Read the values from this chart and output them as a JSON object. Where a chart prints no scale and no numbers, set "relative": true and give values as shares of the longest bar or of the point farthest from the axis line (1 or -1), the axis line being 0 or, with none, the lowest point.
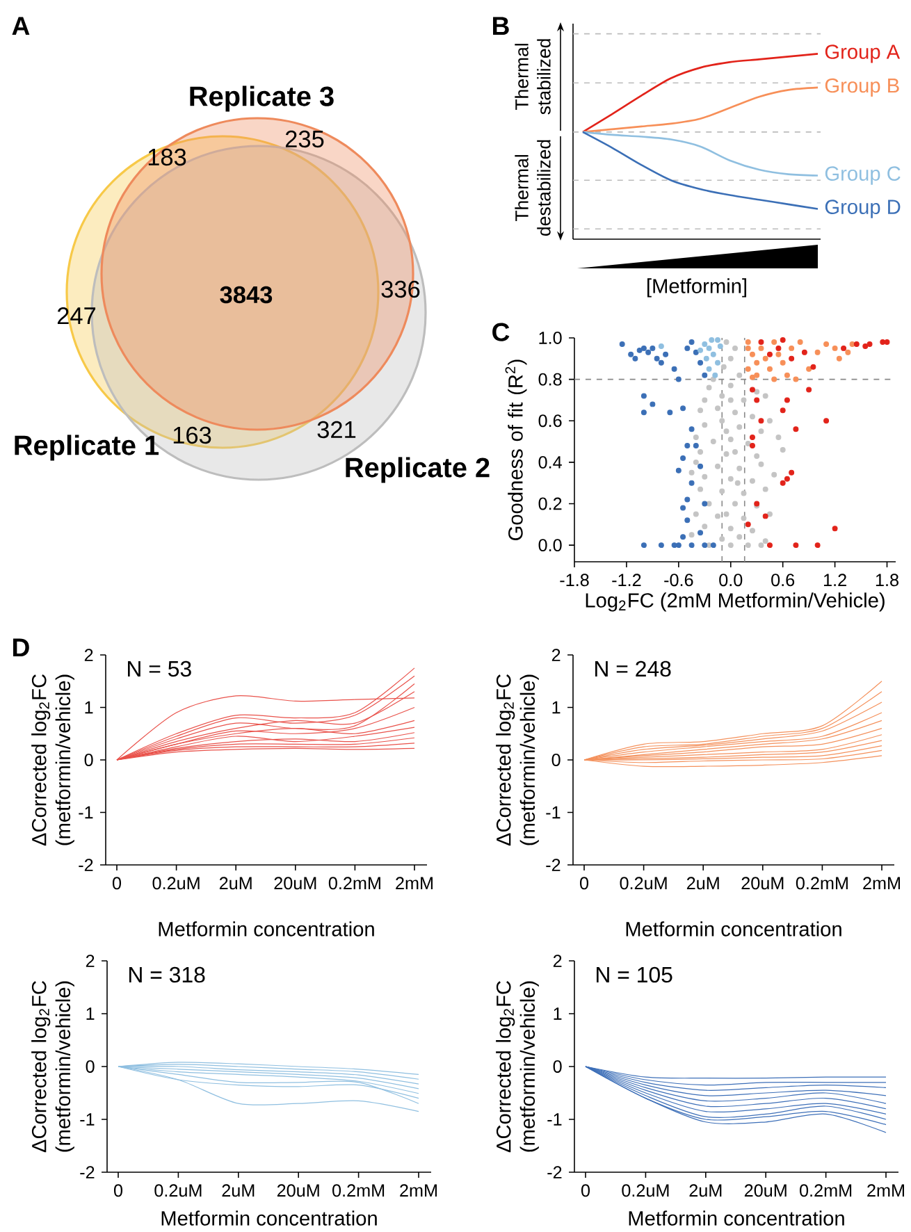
{
  "chart_data": [
    {
      "type": "other",
      "title": "A",
      "annotations": [
        "Replicate 1",
        "Replicate 2",
        "Replicate 3",
        "247",
        "321",
        "235",
        "163",
        "183",
        "336",
        "**3843**"
      ]
    },
    {
      "type": "line",
      "title": "B",
      "relative": true,
      "xlabel": "[Metformin]",
      "annotations": [
        "Thermal stabilized",
        "Thermal destabilized"
      ],
      "categories": [
        null,
        null,
        null,
        null,
        null,
        null,
        null,
        null,
        null
      ],
      "series": [
        {
          "name": "Group A",
          "color": "#e2231a",
          "values": [
            0.578,
            0.675,
            0.775,
            0.868,
            0.925,
            0.955,
            0.97,
            0.985,
            1.0
          ]
        },
        {
          "name": "Group B",
          "color": "#f78f58",
          "values": [
            0.578,
            0.593,
            0.608,
            0.623,
            0.65,
            0.708,
            0.768,
            0.805,
            0.818
          ]
        },
        {
          "name": "Group C",
          "color": "#8fbfe0",
          "values": [
            0.578,
            0.563,
            0.553,
            0.538,
            0.5,
            0.425,
            0.375,
            0.35,
            0.343
          ]
        },
        {
          "name": "Group D",
          "color": "#3b6fb6",
          "values": [
            0.578,
            0.493,
            0.4,
            0.318,
            0.27,
            0.238,
            0.213,
            0.188,
            0.163
          ]
        }
      ],
      "ref_lines": [
        {
          "axis": "y",
          "value": 1.108,
          "color": "#bbbbbb",
          "line_style": "dashed"
        },
        {
          "axis": "y",
          "value": 0.843,
          "color": "#bbbbbb",
          "line_style": "dashed"
        },
        {
          "axis": "y",
          "value": 0.578,
          "color": "#bbbbbb",
          "line_style": "dashed"
        },
        {
          "axis": "y",
          "value": 0.318,
          "color": "#bbbbbb",
          "line_style": "dashed"
        },
        {
          "axis": "y",
          "value": 0.055,
          "color": "#bbbbbb",
          "line_style": "dashed"
        }
      ]
    },
    {
      "type": "scatter",
      "title": "C",
      "xlabel": "Log$_{2}$FC (2mM Metformin/Vehicle)",
      "ylabel": "Goodness of fit (R$^{2}$)",
      "marker": "circle",
      "xlim": [
        -1.8,
        1.9
      ],
      "ylim": [
        -0.08,
        1.0
      ],
      "xticks": [
        -1.8,
        -1.2,
        -0.6,
        {
          "value": 0,
          "label": "0.0"
        },
        0.6,
        1.2,
        1.8
      ],
      "yticks": [
        {
          "value": 0,
          "label": "0.0"
        },
        0.2,
        0.4,
        0.6,
        0.8,
        {
          "value": 1,
          "label": "1.0"
        }
      ],
      "ref_lines": [
        {
          "axis": "y",
          "value": 0.8,
          "color": "#888888",
          "line_style": "dashed"
        },
        {
          "axis": "x",
          "value": -0.1,
          "color": "#888888",
          "line_style": "dashed"
        },
        {
          "axis": "x",
          "value": 0.16,
          "color": "#888888",
          "line_style": "dashed"
        }
      ],
      "series": [
        {
          "color": "#c4c4c4",
          "x": [
            -0.05,
            0.05,
            0.0,
            -0.08,
            0.1,
            -0.25,
            0.0,
            0.3,
            -0.3,
            -0.1,
            0.15,
            0.4,
            -0.35,
            -0.15,
            0.05,
            0.25,
            0.45,
            -0.3,
            0.1,
            0.35,
            -0.4,
            -0.2,
            0.0,
            0.2,
            0.55,
            -0.35,
            -0.05,
            0.3,
            0.6,
            -0.4,
            -0.15,
            0.1,
            0.35,
            -0.3,
            0.0,
            0.25,
            0.5,
            -0.45,
            -0.35,
            -0.1,
            0.15,
            0.4,
            -0.25,
            0.05,
            0.3,
            -0.4,
            -0.15,
            0.15,
            0.45,
            -0.3,
            0.0,
            0.25,
            -0.45,
            -0.1,
            0.1,
            0.4,
            -0.25,
            0.0,
            0.2,
            0.35,
            -0.1,
            0.05,
            -0.2,
            0.0,
            -0.05,
            0.08,
            -0.05
          ],
          "values": [
            0.98,
            0.95,
            0.9,
            0.86,
            0.82,
            0.76,
            0.77,
            0.74,
            0.7,
            0.72,
            0.7,
            0.72,
            0.65,
            0.66,
            0.64,
            0.62,
            0.6,
            0.58,
            0.57,
            0.55,
            0.52,
            0.5,
            0.51,
            0.49,
            0.52,
            0.45,
            0.44,
            0.43,
            0.46,
            0.4,
            0.38,
            0.37,
            0.39,
            0.33,
            0.32,
            0.31,
            0.34,
            0.35,
            0.27,
            0.26,
            0.25,
            0.27,
            0.2,
            0.2,
            0.19,
            0.15,
            0.14,
            0.13,
            0.15,
            0.09,
            0.08,
            0.07,
            0.05,
            0.03,
            0.04,
            0.02,
            0.0,
            0.0,
            0.0,
            0.0,
            0.6,
            0.45,
            0.8,
            0.7,
            0.55,
            0.3,
            0.15
          ]
        },
        {
          "color": "#3b6fb6",
          "x": [
            -1.25,
            -1.15,
            -1.1,
            -1.05,
            -1.0,
            -0.95,
            -0.9,
            -0.85,
            -0.8,
            -0.75,
            -0.65,
            -0.6,
            -0.5,
            -0.45,
            -0.4,
            -0.35,
            -0.3,
            -1.0,
            -0.9,
            -1.0,
            -0.7,
            -0.55,
            -0.45,
            -0.5,
            -0.4,
            -0.55,
            -0.6,
            -0.45,
            -0.5,
            -0.55,
            -0.5,
            -0.35,
            -0.55,
            -1.0,
            -0.8,
            -0.6,
            -0.45,
            -0.3,
            -0.2,
            -0.3,
            -0.35,
            -0.65
          ],
          "values": [
            0.97,
            0.92,
            0.9,
            0.94,
            0.95,
            0.93,
            0.95,
            0.9,
            0.88,
            0.92,
            0.85,
            0.8,
            0.95,
            0.98,
            0.93,
            0.88,
            0.82,
            0.72,
            0.68,
            0.64,
            0.64,
            0.66,
            0.56,
            0.48,
            0.48,
            0.42,
            0.36,
            0.3,
            0.22,
            0.18,
            0.12,
            0.06,
            0.04,
            0.0,
            0.0,
            0.0,
            0.0,
            0.0,
            0.0,
            0.2,
            0.38,
            0.0
          ]
        },
        {
          "color": "#8fbfe0",
          "x": [
            -0.3,
            -0.25,
            -0.2,
            -0.15,
            -0.25,
            -0.18,
            -0.28,
            -0.12,
            -0.22,
            -0.15,
            -0.35,
            -0.8
          ],
          "values": [
            0.97,
            0.95,
            0.92,
            0.88,
            0.85,
            0.82,
            0.9,
            0.96,
            0.99,
            0.99,
            0.94,
            0.96
          ]
        },
        {
          "color": "#f78f58",
          "x": [
            0.2,
            0.25,
            0.3,
            0.35,
            0.2,
            0.3,
            0.4,
            0.45,
            0.5,
            0.55,
            0.6,
            0.65,
            0.7,
            0.8,
            0.9,
            1.0,
            1.1,
            1.2,
            1.25,
            1.35,
            1.4,
            0.2,
            0.25,
            0.5,
            0.75
          ],
          "values": [
            0.98,
            0.92,
            0.88,
            0.95,
            0.85,
            0.82,
            0.9,
            0.85,
            0.98,
            0.92,
            0.88,
            0.82,
            0.95,
            0.98,
            0.85,
            0.93,
            0.97,
            0.95,
            0.9,
            0.93,
            0.97,
            0.95,
            0.81,
            0.8,
            0.8
          ]
        },
        {
          "color": "#e2231a",
          "x": [
            0.35,
            0.45,
            0.55,
            0.6,
            0.7,
            0.85,
            0.95,
            1.3,
            1.45,
            1.55,
            1.75,
            1.6,
            1.8,
            0.25,
            0.3,
            0.65,
            0.9,
            0.6,
            0.35,
            1.1,
            0.75,
            0.25,
            0.25,
            0.7,
            0.6,
            0.65,
            0.3,
            0.4,
            0.2,
            1.2,
            0.45,
            0.75,
            1.0
          ],
          "values": [
            0.98,
            0.92,
            0.95,
            0.99,
            0.9,
            0.93,
            0.86,
            0.95,
            0.97,
            0.96,
            0.98,
            0.97,
            0.98,
            0.75,
            0.7,
            0.7,
            0.75,
            0.65,
            0.6,
            0.6,
            0.56,
            0.52,
            0.48,
            0.35,
            0.3,
            0.32,
            0.2,
            0.14,
            0.1,
            0.08,
            0.0,
            0.0,
            0.0
          ]
        }
      ]
    },
    {
      "type": "line",
      "title": "D",
      "annotations": [
        "N = 53"
      ],
      "xlabel": "Metformin concentration",
      "ylabel": "ΔCorrected log$_{2}$FC (metformin/vehicle)",
      "categories": [
        "0",
        "0.2uM",
        "2uM",
        "20uM",
        "0.2mM",
        "2mM"
      ],
      "ylim": [
        -2,
        2
      ],
      "yticks": [
        -2,
        -1,
        0,
        1,
        2
      ],
      "series": [
        {
          "color": "#e9524b",
          "values": [
            0,
            0.9,
            1.22,
            1.12,
            1.15,
            1.18
          ]
        },
        {
          "color": "#e9524b",
          "values": [
            0,
            0.5,
            0.85,
            0.8,
            0.9,
            1.75
          ]
        },
        {
          "color": "#e9524b",
          "values": [
            0,
            0.45,
            0.8,
            0.7,
            0.85,
            1.6
          ]
        },
        {
          "color": "#e9524b",
          "values": [
            0,
            0.4,
            0.7,
            0.6,
            0.65,
            1.45
          ]
        },
        {
          "color": "#e9524b",
          "values": [
            0,
            0.35,
            0.6,
            0.75,
            0.7,
            1.3
          ]
        },
        {
          "color": "#e9524b",
          "values": [
            0,
            0.3,
            0.55,
            0.5,
            0.6,
            1.0
          ]
        },
        {
          "color": "#e9524b",
          "values": [
            0,
            0.3,
            0.5,
            0.6,
            0.5,
            0.75
          ]
        },
        {
          "color": "#e9524b",
          "values": [
            0,
            0.25,
            0.45,
            0.35,
            0.45,
            0.62
          ]
        },
        {
          "color": "#e9524b",
          "values": [
            0,
            0.22,
            0.35,
            0.4,
            0.35,
            0.52
          ]
        },
        {
          "color": "#e9524b",
          "values": [
            0,
            0.2,
            0.3,
            0.3,
            0.3,
            0.42
          ]
        },
        {
          "color": "#e9524b",
          "values": [
            0,
            0.18,
            0.25,
            0.25,
            0.25,
            0.32
          ]
        },
        {
          "color": "#e9524b",
          "values": [
            0,
            0.15,
            0.2,
            0.22,
            0.2,
            0.22
          ]
        }
      ]
    },
    {
      "type": "line",
      "annotations": [
        "N = 248"
      ],
      "xlabel": "Metformin concentration",
      "ylabel": "ΔCorrected log$_{2}$FC (metformin/vehicle)",
      "categories": [
        "0",
        "0.2uM",
        "2uM",
        "20uM",
        "0.2mM",
        "2mM"
      ],
      "ylim": [
        -2,
        2
      ],
      "yticks": [
        -2,
        -1,
        0,
        1,
        2
      ],
      "series": [
        {
          "color": "#f4915c",
          "values": [
            0,
            0.3,
            0.35,
            0.5,
            0.65,
            1.5
          ]
        },
        {
          "color": "#f4915c",
          "values": [
            0,
            0.25,
            0.3,
            0.45,
            0.6,
            1.3
          ]
        },
        {
          "color": "#f4915c",
          "values": [
            0,
            0.2,
            0.28,
            0.4,
            0.55,
            1.1
          ]
        },
        {
          "color": "#f4915c",
          "values": [
            0,
            0.15,
            0.25,
            0.35,
            0.45,
            0.9
          ]
        },
        {
          "color": "#f4915c",
          "values": [
            0,
            0.1,
            0.2,
            0.3,
            0.4,
            0.75
          ]
        },
        {
          "color": "#f4915c",
          "values": [
            0,
            0.08,
            0.15,
            0.25,
            0.3,
            0.6
          ]
        },
        {
          "color": "#f4915c",
          "values": [
            0,
            0.05,
            0.1,
            0.15,
            0.2,
            0.48
          ]
        },
        {
          "color": "#f4915c",
          "values": [
            0,
            0.02,
            0.05,
            0.1,
            0.15,
            0.37
          ]
        },
        {
          "color": "#f4915c",
          "values": [
            0,
            0,
            0.02,
            0.05,
            0.08,
            0.27
          ]
        },
        {
          "color": "#f4915c",
          "values": [
            0,
            -0.05,
            -0.02,
            0,
            0.02,
            0.18
          ]
        },
        {
          "color": "#f4915c",
          "values": [
            0,
            -0.12,
            -0.12,
            -0.1,
            -0.05,
            0.08
          ]
        }
      ]
    },
    {
      "type": "line",
      "annotations": [
        "N = 318"
      ],
      "xlabel": "Metformin concentration",
      "ylabel": "ΔCorrected log$_{2}$FC (metformin/vehicle)",
      "categories": [
        "0",
        "0.2uM",
        "2uM",
        "20uM",
        "0.2mM",
        "2mM"
      ],
      "ylim": [
        -2,
        2
      ],
      "yticks": [
        -2,
        -1,
        0,
        1,
        2
      ],
      "series": [
        {
          "color": "#8fbfe0",
          "values": [
            0,
            0.08,
            0.05,
            0,
            -0.05,
            -0.15
          ]
        },
        {
          "color": "#8fbfe0",
          "values": [
            0,
            0.04,
            0,
            -0.05,
            -0.1,
            -0.24
          ]
        },
        {
          "color": "#8fbfe0",
          "values": [
            0,
            0,
            -0.06,
            -0.1,
            -0.16,
            -0.33
          ]
        },
        {
          "color": "#8fbfe0",
          "values": [
            0,
            -0.05,
            -0.1,
            -0.15,
            -0.22,
            -0.42
          ]
        },
        {
          "color": "#8fbfe0",
          "values": [
            0,
            -0.1,
            -0.15,
            -0.2,
            -0.28,
            -0.51
          ]
        },
        {
          "color": "#8fbfe0",
          "values": [
            0,
            -0.25,
            -0.35,
            -0.38,
            -0.35,
            -0.6
          ]
        },
        {
          "color": "#8fbfe0",
          "values": [
            0,
            -0.15,
            -0.3,
            -0.3,
            -0.3,
            -0.7
          ]
        },
        {
          "color": "#8fbfe0",
          "values": [
            0,
            -0.25,
            -0.7,
            -0.7,
            -0.65,
            -0.85
          ]
        }
      ]
    },
    {
      "type": "line",
      "annotations": [
        "N = 105"
      ],
      "xlabel": "Metformin concentration",
      "ylabel": "ΔCorrected log$_{2}$FC (metformin/vehicle)",
      "categories": [
        "0",
        "0.2uM",
        "2uM",
        "20uM",
        "0.2mM",
        "2mM"
      ],
      "ylim": [
        -2,
        2
      ],
      "yticks": [
        -2,
        -1,
        0,
        1,
        2
      ],
      "series": [
        {
          "color": "#3d6fb8",
          "values": [
            0,
            -0.2,
            -0.22,
            -0.22,
            -0.2,
            -0.2
          ]
        },
        {
          "color": "#3d6fb8",
          "values": [
            0,
            -0.25,
            -0.35,
            -0.3,
            -0.3,
            -0.3
          ]
        },
        {
          "color": "#3d6fb8",
          "values": [
            0,
            -0.3,
            -0.45,
            -0.4,
            -0.35,
            -0.4
          ]
        },
        {
          "color": "#3d6fb8",
          "values": [
            0,
            -0.35,
            -0.55,
            -0.5,
            -0.45,
            -0.55
          ]
        },
        {
          "color": "#3d6fb8",
          "values": [
            0,
            -0.4,
            -0.65,
            -0.6,
            -0.5,
            -0.7
          ]
        },
        {
          "color": "#3d6fb8",
          "values": [
            0,
            -0.45,
            -0.75,
            -0.7,
            -0.6,
            -0.8
          ]
        },
        {
          "color": "#3d6fb8",
          "values": [
            0,
            -0.5,
            -0.85,
            -0.8,
            -0.7,
            -0.9
          ]
        },
        {
          "color": "#3d6fb8",
          "values": [
            0,
            -0.55,
            -0.95,
            -0.9,
            -0.75,
            -1.0
          ]
        },
        {
          "color": "#3d6fb8",
          "values": [
            0,
            -0.6,
            -1.0,
            -0.95,
            -0.85,
            -1.1
          ]
        },
        {
          "color": "#3d6fb8",
          "values": [
            0,
            -0.6,
            -1.05,
            -1.05,
            -0.9,
            -1.25
          ]
        }
      ]
    }
  ]
}
